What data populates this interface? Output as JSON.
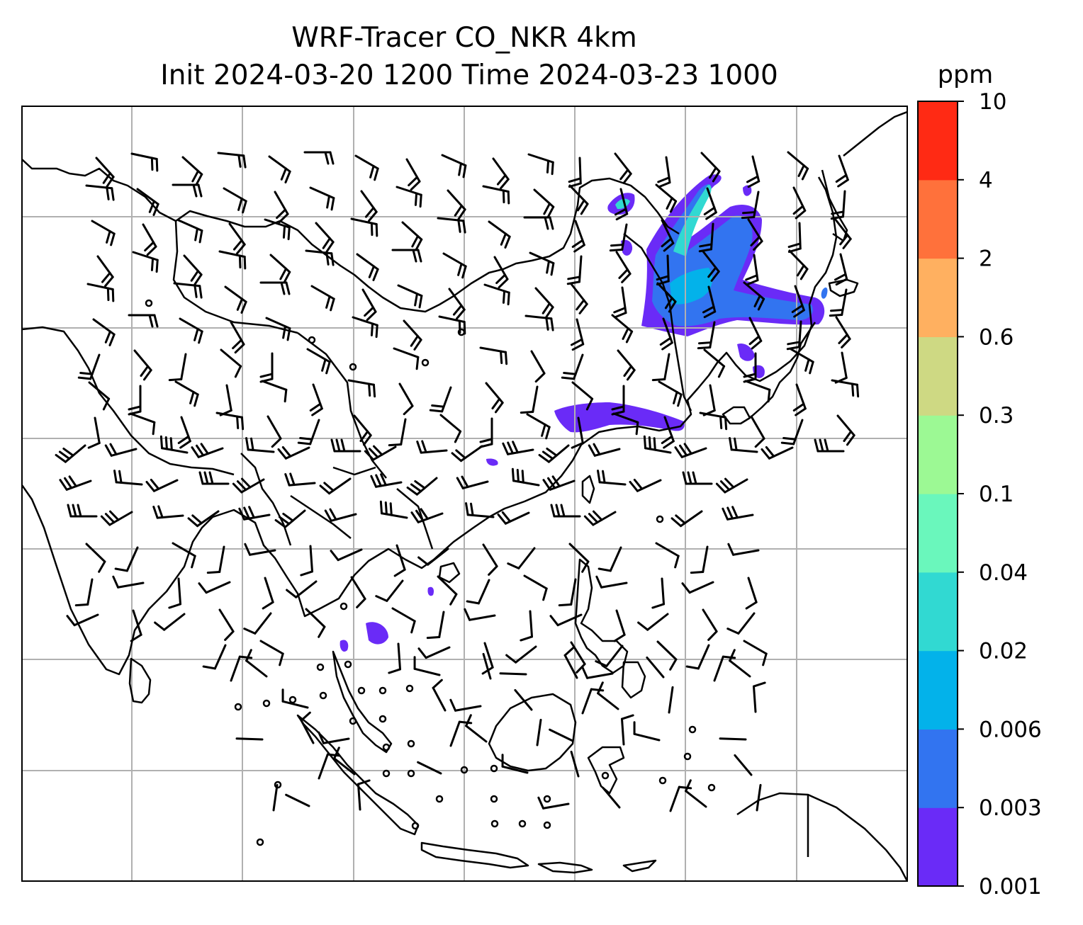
{
  "chart_data": {
    "type": "map",
    "title": "WRF-Tracer CO_NKR 4km",
    "subtitle": "Init 2024-03-20 1200 Time 2024-03-23 1000",
    "colorbar": {
      "unit": "ppm",
      "levels": [
        "0.001",
        "0.003",
        "0.006",
        "0.02",
        "0.04",
        "0.1",
        "0.3",
        "0.6",
        "2",
        "4",
        "10"
      ],
      "colors": [
        "#6a2bf7",
        "#3274f0",
        "#03b2ea",
        "#31d9d2",
        "#6af7bc",
        "#9cf994",
        "#ced983",
        "#ffb060",
        "#ff713b",
        "#ff2a14"
      ]
    },
    "grid": true,
    "overlay": "wind barbs and coastlines",
    "background_color": "#ffffff",
    "line_color": "#000000",
    "grid_color": "#b0b0b0"
  }
}
